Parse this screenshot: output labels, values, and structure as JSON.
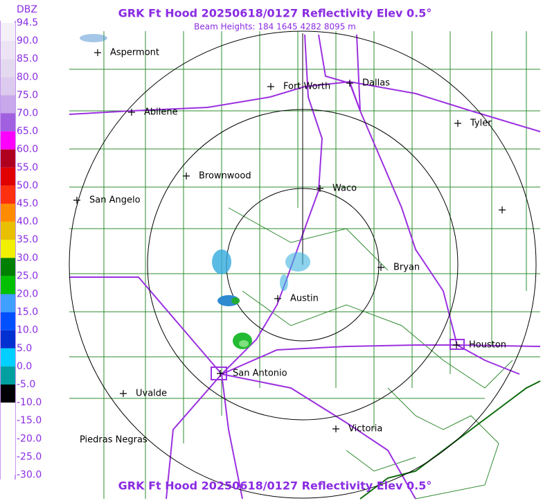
{
  "header": {
    "title": "GRK Ft Hood 20250618/0127 Reflectivity Elev 0.5°",
    "subtitle": "Beam Heights: 184 1645 4282 8095 m"
  },
  "legend": {
    "title": "DBZ",
    "labels": [
      "94.5",
      "90.0",
      "85.0",
      "80.0",
      "75.0",
      "70.0",
      "65.0",
      "60.0",
      "55.0",
      "50.0",
      "45.0",
      "40.0",
      "35.0",
      "30.0",
      "25.0",
      "20.0",
      "15.0",
      "10.0",
      "5.0",
      "0.0",
      "-5.0",
      "-10.0",
      "-15.0",
      "-20.0",
      "-25.0",
      "-30.0"
    ]
  },
  "cities": [
    {
      "label": "Aspermont"
    },
    {
      "label": "Fort Worth"
    },
    {
      "label": "Dallas"
    },
    {
      "label": "Abilene"
    },
    {
      "label": "Tyler"
    },
    {
      "label": "Brownwood"
    },
    {
      "label": "Waco"
    },
    {
      "label": "San Angelo"
    },
    {
      "label": "Bryan"
    },
    {
      "label": "Austin"
    },
    {
      "label": "Houston"
    },
    {
      "label": "San Antonio"
    },
    {
      "label": "Uvalde"
    },
    {
      "label": "Piedras Negras"
    },
    {
      "label": "Victoria"
    }
  ],
  "footer": {
    "title": "GRK Ft Hood 20250618/0127 Reflectivity Elev 0.5°"
  }
}
